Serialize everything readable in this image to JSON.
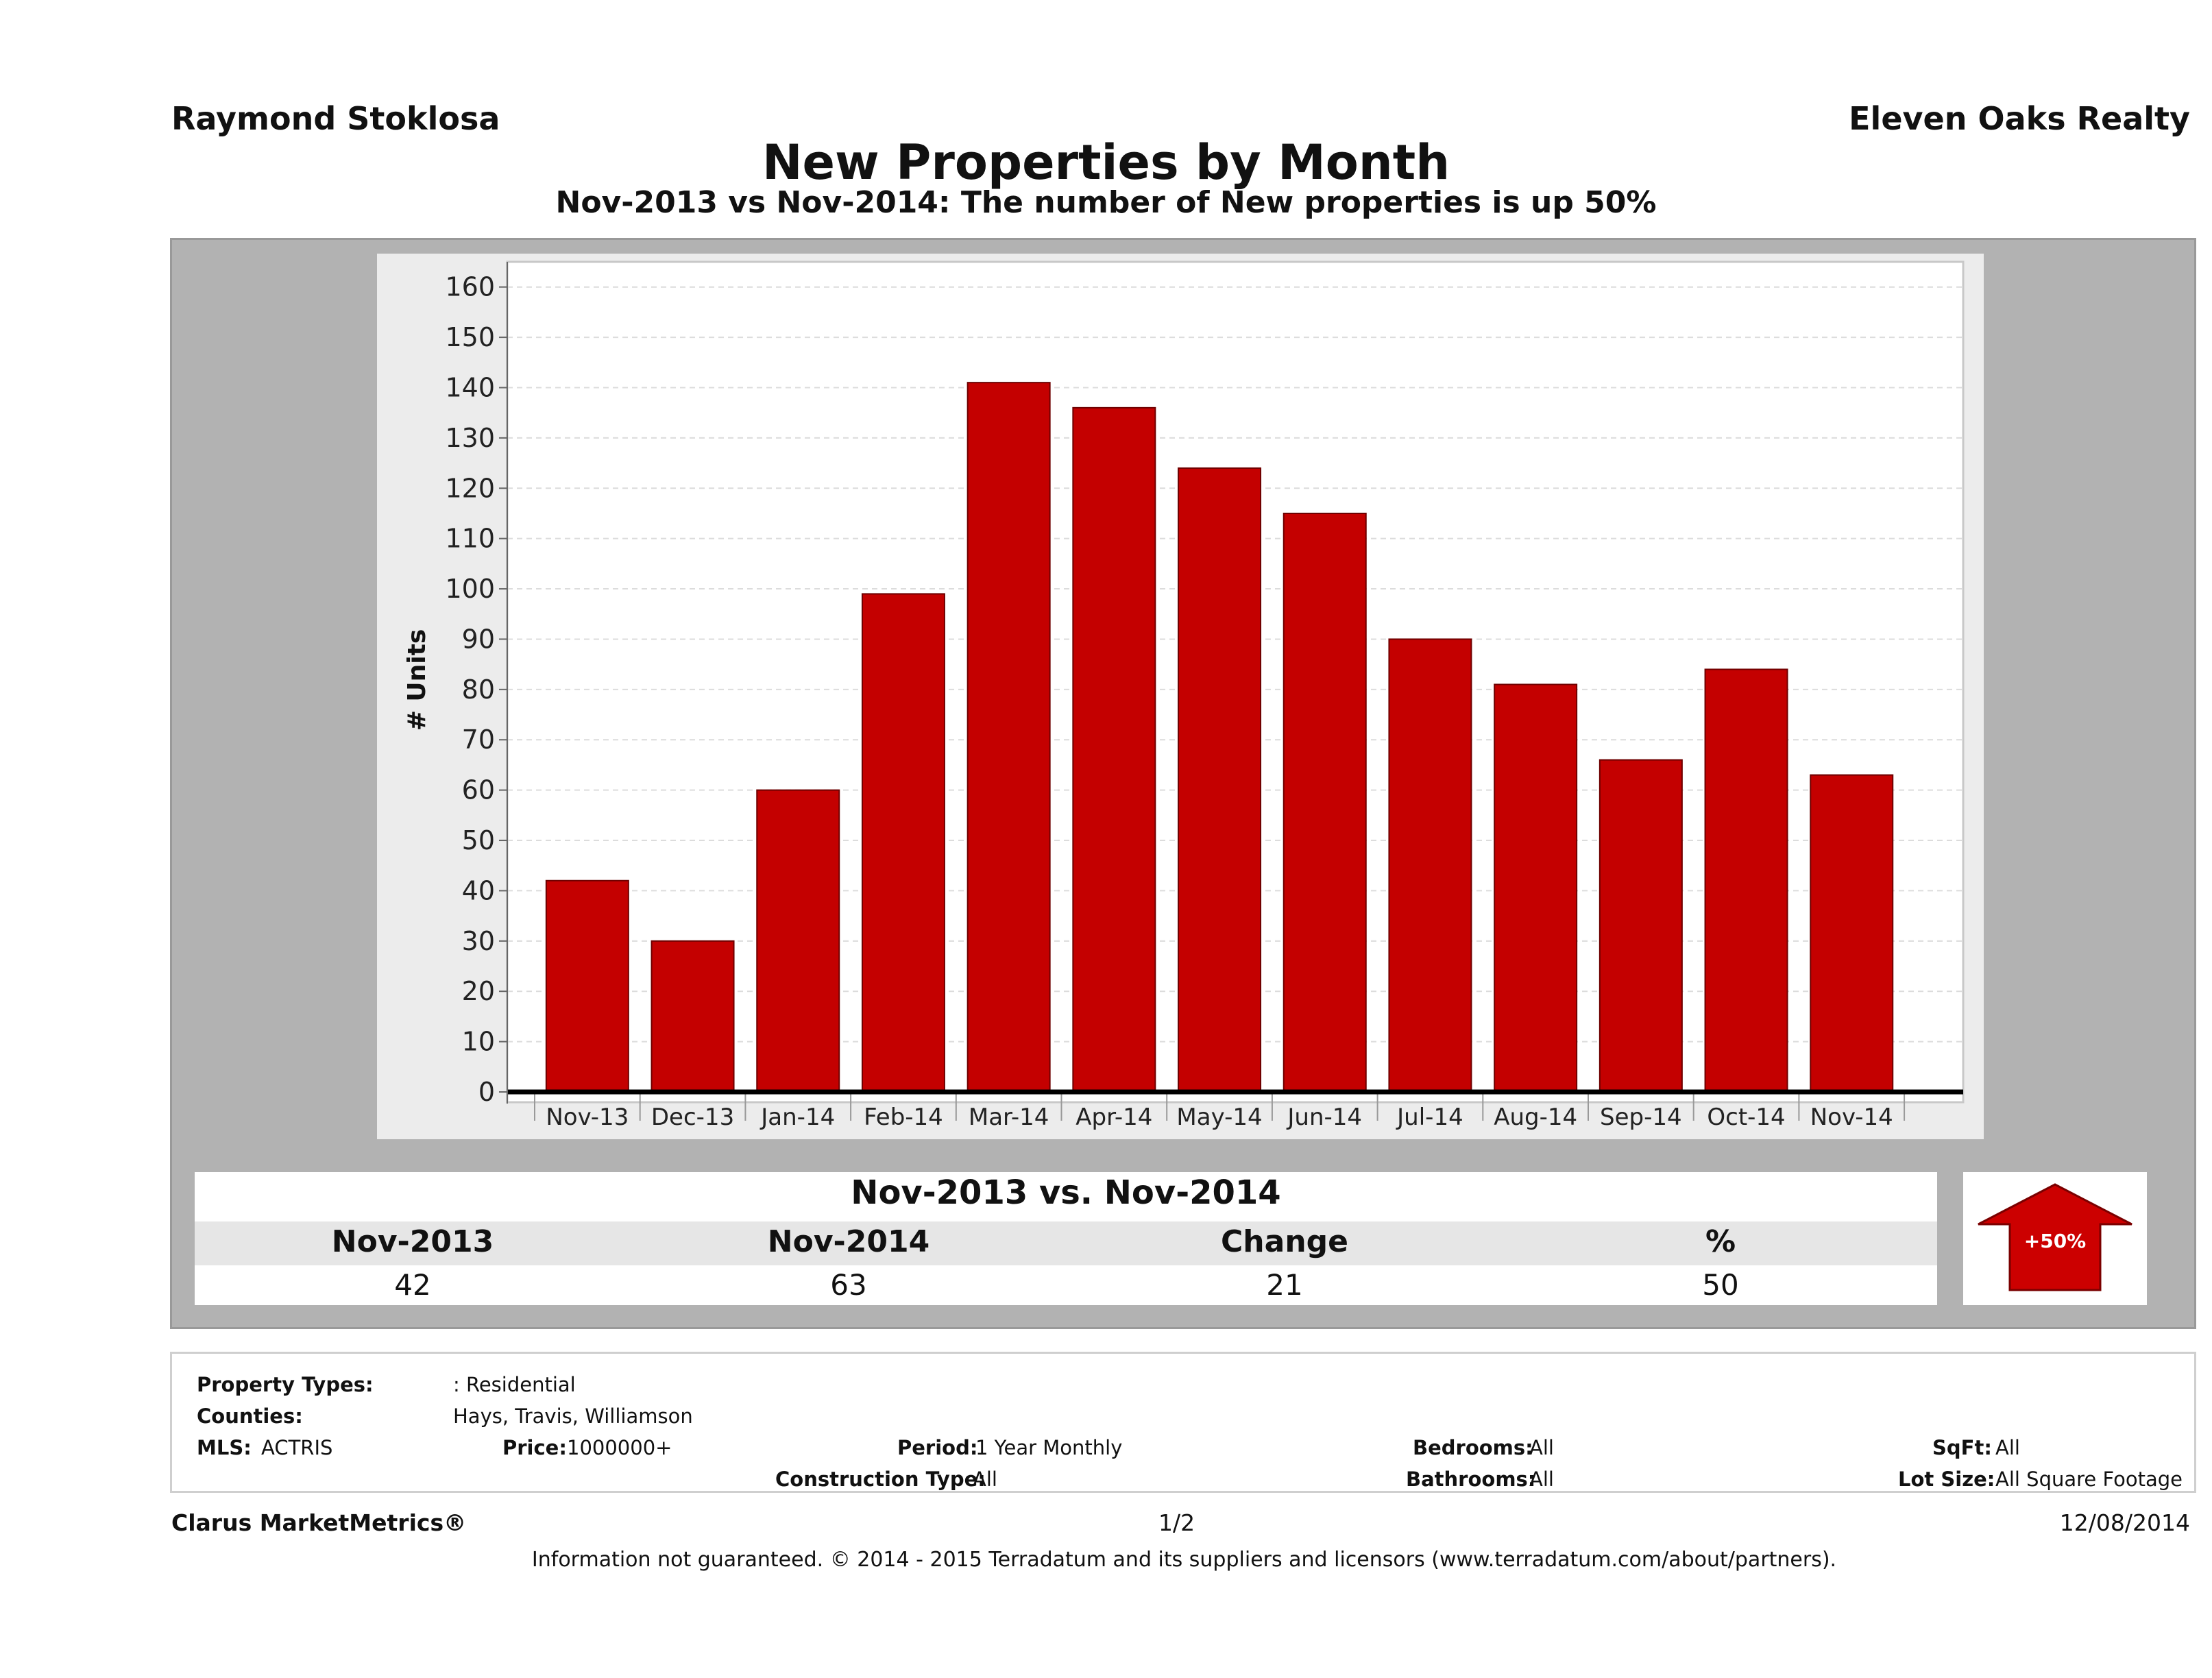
{
  "header": {
    "agent": "Raymond Stoklosa",
    "company": "Eleven Oaks Realty",
    "title": "New Properties by Month",
    "subtitle": "Nov-2013 vs Nov-2014: The number of New   properties is up 50%"
  },
  "chart_data": {
    "type": "bar",
    "title": "New Properties by Month",
    "xlabel": "",
    "ylabel": "# Units",
    "ylim": [
      0,
      165
    ],
    "yticks": [
      0,
      10,
      20,
      30,
      40,
      50,
      60,
      70,
      80,
      90,
      100,
      110,
      120,
      130,
      140,
      150,
      160
    ],
    "grid": true,
    "categories": [
      "Nov-13",
      "Dec-13",
      "Jan-14",
      "Feb-14",
      "Mar-14",
      "Apr-14",
      "May-14",
      "Jun-14",
      "Jul-14",
      "Aug-14",
      "Sep-14",
      "Oct-14",
      "Nov-14"
    ],
    "values": [
      42,
      30,
      60,
      99,
      141,
      136,
      124,
      115,
      90,
      81,
      66,
      84,
      63
    ],
    "bar_color": "#c40000"
  },
  "summary": {
    "title": "Nov-2013 vs. Nov-2014",
    "columns": [
      {
        "label": "Nov-2013",
        "value": "42"
      },
      {
        "label": "Nov-2014",
        "value": "63"
      },
      {
        "label": "Change",
        "value": "21"
      },
      {
        "label": "%",
        "value": "50"
      }
    ],
    "badge": "+50%",
    "badge_color": "#cc0000"
  },
  "filters": {
    "property_types_label": "Property Types:",
    "property_types_value": ": Residential",
    "counties_label": "Counties:",
    "counties_value": "Hays, Travis, Williamson",
    "mls_label": "MLS:",
    "mls_value": "ACTRIS",
    "price_label": "Price:",
    "price_value": "1000000+",
    "period_label": "Period:",
    "period_value": "1 Year Monthly",
    "construction_label": "Construction Type:",
    "construction_value": "All",
    "bedrooms_label": "Bedrooms:",
    "bedrooms_value": "All",
    "bathrooms_label": "Bathrooms:",
    "bathrooms_value": "All",
    "sqft_label": "SqFt:",
    "sqft_value": "All",
    "lotsize_label": "Lot Size:",
    "lotsize_value": "All Square Footage"
  },
  "footer": {
    "brand": "Clarus MarketMetrics®",
    "page": "1/2",
    "date": "12/08/2014",
    "disclaimer": "Information not guaranteed. © 2014 - 2015 Terradatum and its suppliers and licensors (www.terradatum.com/about/partners)."
  }
}
